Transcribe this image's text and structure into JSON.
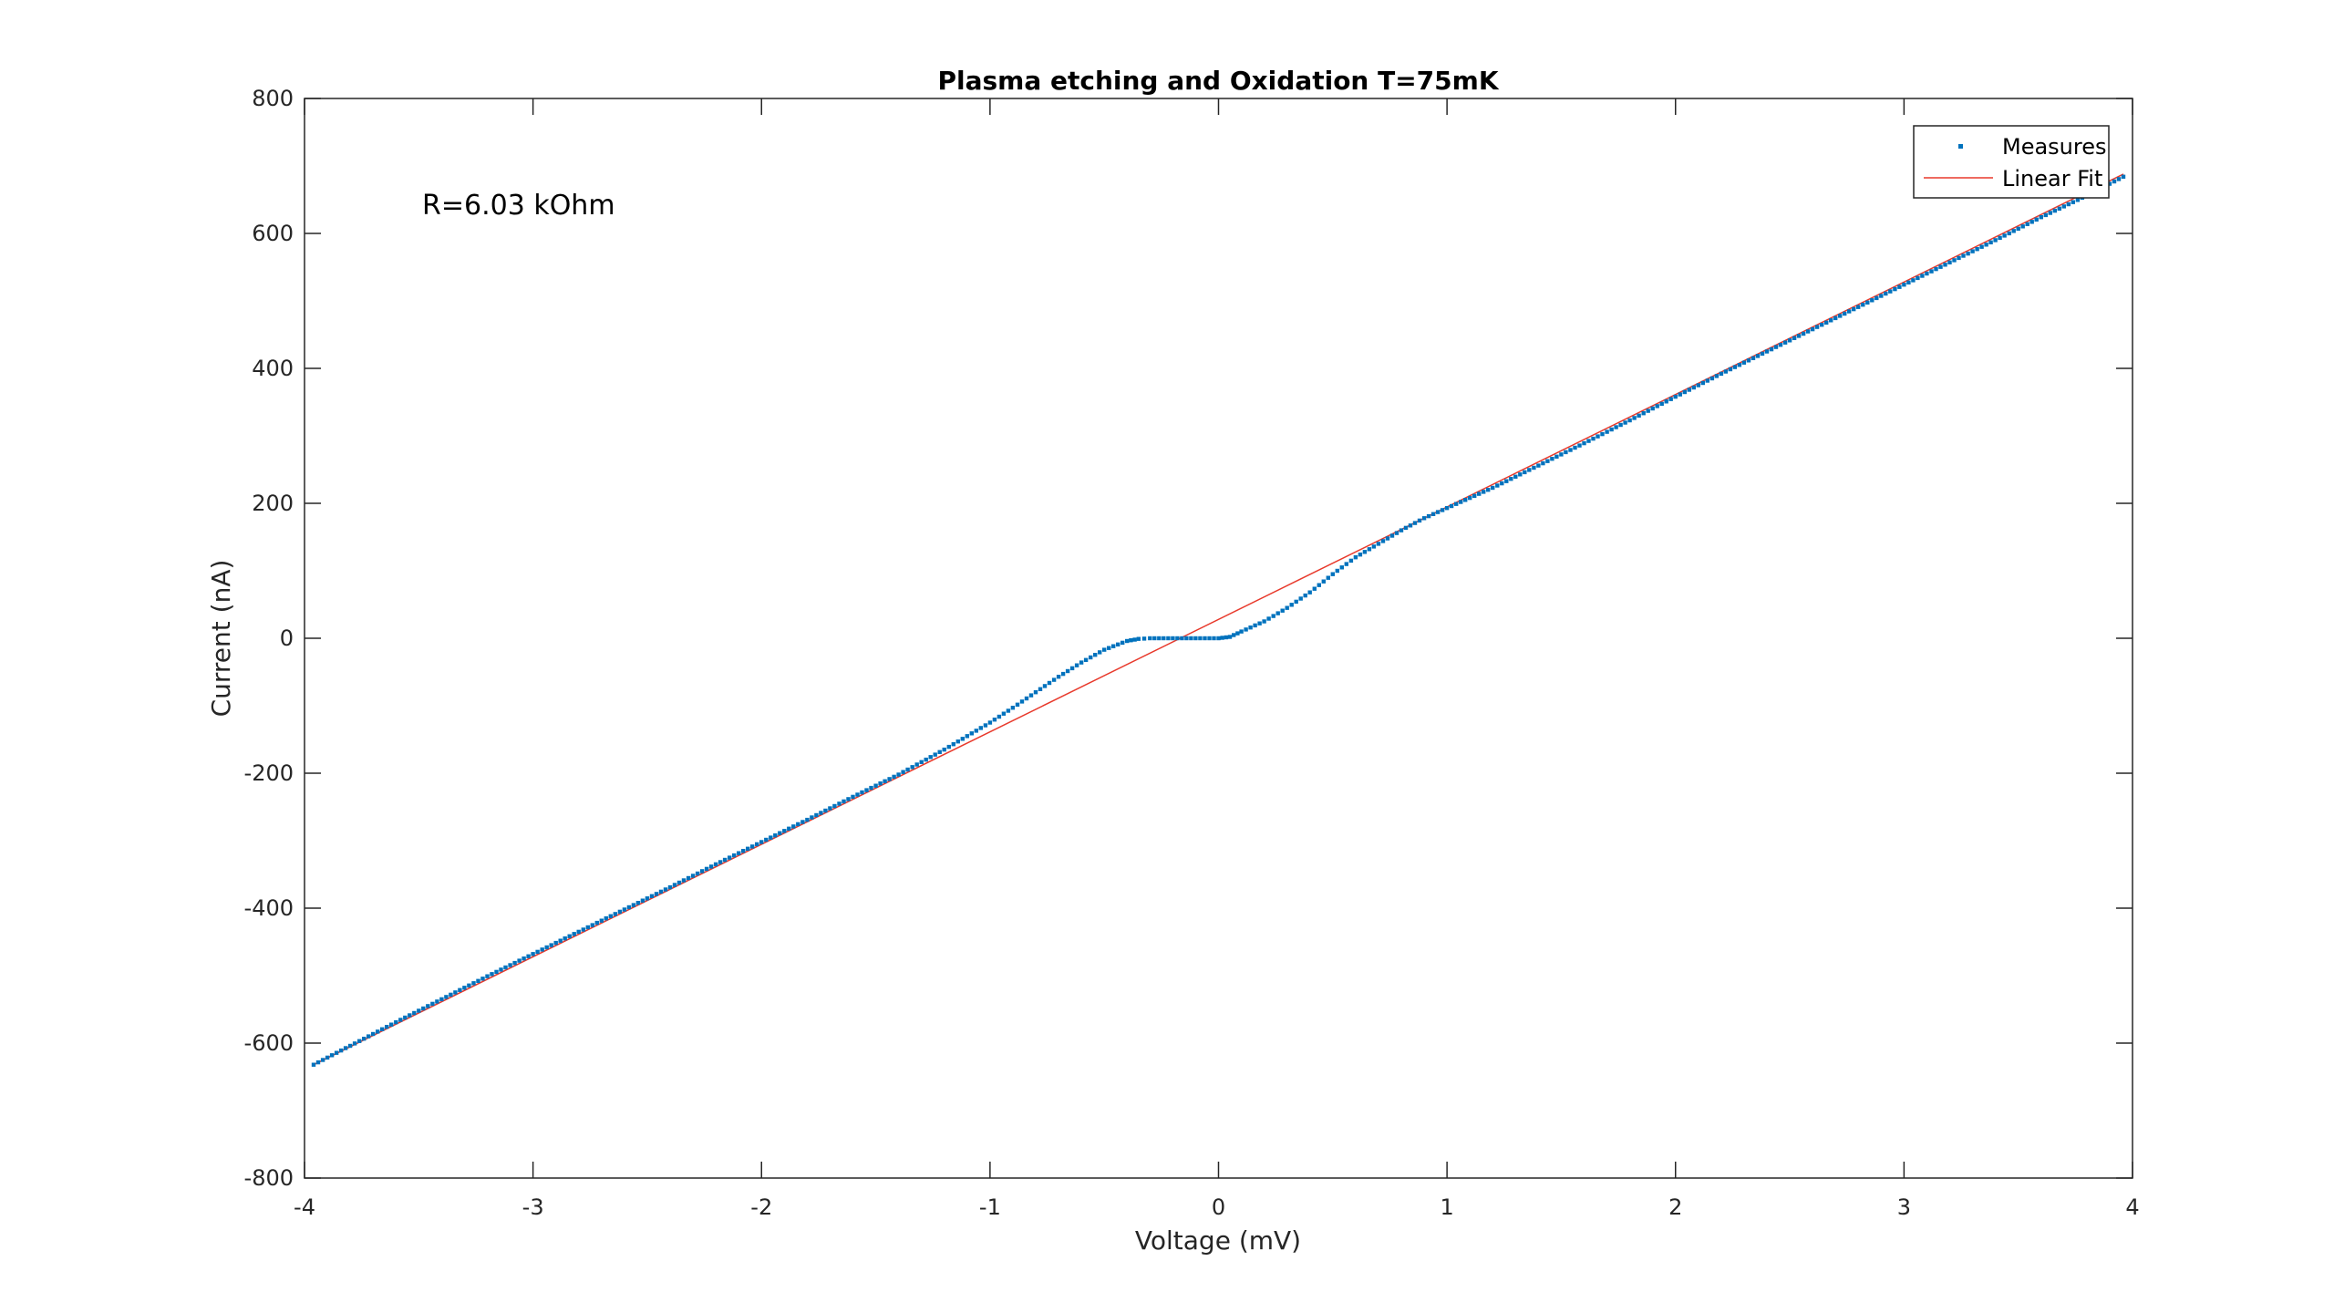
{
  "chart_data": {
    "type": "scatter",
    "title": "Plasma etching and Oxidation T=75mK",
    "xlabel": "Voltage (mV)",
    "ylabel": "Current (nA)",
    "xlim": [
      -4,
      4
    ],
    "ylim": [
      -800,
      800
    ],
    "xticks": [
      -4,
      -3,
      -2,
      -1,
      0,
      1,
      2,
      3,
      4
    ],
    "yticks": [
      -800,
      -600,
      -400,
      -200,
      0,
      200,
      400,
      600,
      800
    ],
    "xtick_labels": [
      "-4",
      "-3",
      "-2",
      "-1",
      "0",
      "1",
      "2",
      "3",
      "4"
    ],
    "ytick_labels": [
      "-800",
      "-600",
      "-400",
      "-200",
      "0",
      "200",
      "400",
      "600",
      "800"
    ],
    "grid": false,
    "legend_position": "top-right",
    "annotation": "R=6.03 kOhm",
    "colors": {
      "measures": "#0072BD",
      "fit": "#E8392B",
      "axis": "#262626"
    },
    "series": [
      {
        "name": "Measures",
        "kind": "markers",
        "x": [
          -3.96,
          -3.8,
          -3.6,
          -3.4,
          -3.2,
          -3.0,
          -2.8,
          -2.6,
          -2.4,
          -2.2,
          -2.0,
          -1.8,
          -1.6,
          -1.4,
          -1.2,
          -1.0,
          -0.9,
          -0.8,
          -0.7,
          -0.6,
          -0.5,
          -0.4,
          -0.35,
          -0.3,
          -0.2,
          -0.1,
          0.0,
          0.05,
          0.1,
          0.2,
          0.3,
          0.4,
          0.5,
          0.6,
          0.7,
          0.8,
          0.9,
          1.0,
          1.2,
          1.4,
          1.6,
          1.8,
          2.0,
          2.2,
          2.4,
          2.6,
          2.8,
          3.0,
          3.2,
          3.4,
          3.6,
          3.8,
          3.96
        ],
        "y": [
          -632,
          -604,
          -569,
          -535,
          -501,
          -468,
          -435,
          -402,
          -369,
          -335,
          -302,
          -269,
          -235,
          -202,
          -165,
          -125,
          -103,
          -80,
          -57,
          -36,
          -17,
          -4,
          -1,
          0,
          0,
          0,
          0,
          2,
          10,
          25,
          45,
          68,
          95,
          120,
          140,
          160,
          178,
          193,
          223,
          256,
          289,
          323,
          358,
          392,
          425,
          458,
          491,
          524,
          557,
          590,
          624,
          656,
          684
        ]
      },
      {
        "name": "Linear Fit",
        "kind": "line",
        "x": [
          -3.96,
          3.96
        ],
        "y": [
          -632,
          688
        ]
      }
    ]
  }
}
